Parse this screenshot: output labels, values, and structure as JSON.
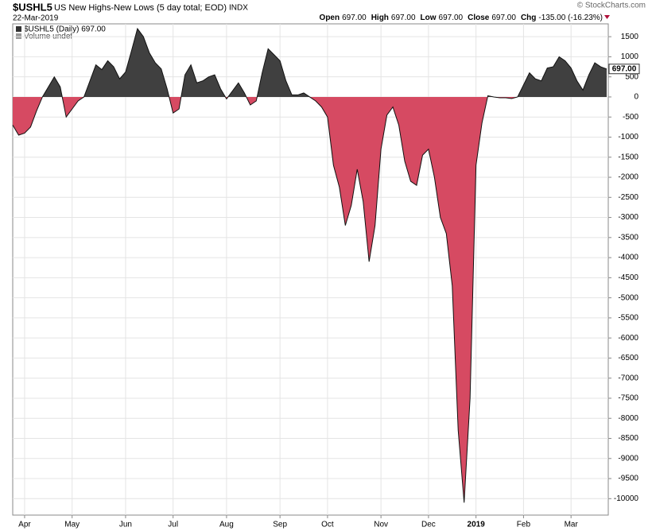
{
  "chart_data": {
    "type": "area",
    "symbol": "$USHL5",
    "title": "US New Highs-New Lows (5 day total; EOD)",
    "exchange": "INDX",
    "date": "22-Mar-2019",
    "credit": "© StockCharts.com",
    "quote": [
      {
        "label": "Open",
        "value": "697.00"
      },
      {
        "label": "High",
        "value": "697.00"
      },
      {
        "label": "Low",
        "value": "697.00"
      },
      {
        "label": "Close",
        "value": "697.00"
      },
      {
        "label": "Chg",
        "value": "-135.00 (-16.23%)"
      }
    ],
    "legend": [
      "$USHL5 (Daily) 697.00",
      "Volume undef"
    ],
    "positive_color": "#404040",
    "negative_color": "#d64a62",
    "line_color": "#111111",
    "grid": true,
    "categories": [
      null,
      null,
      "Apr",
      null,
      null,
      null,
      null,
      null,
      null,
      null,
      "May",
      null,
      null,
      null,
      null,
      null,
      null,
      null,
      null,
      "Jun",
      null,
      null,
      null,
      null,
      null,
      null,
      null,
      "Jul",
      null,
      null,
      null,
      null,
      null,
      null,
      null,
      null,
      "Aug",
      null,
      null,
      null,
      null,
      null,
      null,
      null,
      null,
      "Sep",
      null,
      null,
      null,
      null,
      null,
      null,
      null,
      "Oct",
      null,
      null,
      null,
      null,
      null,
      null,
      null,
      null,
      "Nov",
      null,
      null,
      null,
      null,
      null,
      null,
      null,
      "Dec",
      null,
      null,
      null,
      null,
      null,
      null,
      null,
      "2019",
      null,
      null,
      null,
      null,
      null,
      null,
      null,
      "Feb",
      null,
      null,
      null,
      null,
      null,
      null,
      null,
      "Mar",
      null,
      null,
      null,
      null,
      null,
      null
    ],
    "values": [
      -700,
      -950,
      -900,
      -750,
      -350,
      0,
      250,
      500,
      250,
      -500,
      -300,
      -100,
      0,
      400,
      800,
      680,
      900,
      750,
      450,
      620,
      1150,
      1700,
      1500,
      1100,
      850,
      700,
      200,
      -400,
      -300,
      550,
      800,
      350,
      400,
      500,
      550,
      200,
      -50,
      150,
      350,
      100,
      -200,
      -100,
      600,
      1200,
      1050,
      900,
      400,
      50,
      50,
      100,
      0,
      -100,
      -250,
      -500,
      -1700,
      -2250,
      -3200,
      -2700,
      -1800,
      -2600,
      -4100,
      -3200,
      -1300,
      -450,
      -250,
      -700,
      -1600,
      -2100,
      -2200,
      -1450,
      -1300,
      -2000,
      -3000,
      -3400,
      -4700,
      -8300,
      -10100,
      -7500,
      -1700,
      -650,
      30,
      0,
      -20,
      -20,
      -40,
      0,
      300,
      600,
      450,
      400,
      720,
      750,
      1000,
      900,
      720,
      400,
      170,
      550,
      850,
      750,
      697
    ],
    "last_value_label": "697.00",
    "ylim": [
      -10350,
      1780
    ],
    "yticks": [
      -10000,
      -9500,
      -9000,
      -8500,
      -8000,
      -7500,
      -7000,
      -6500,
      -6000,
      -5500,
      -5000,
      -4500,
      -4000,
      -3500,
      -3000,
      -2500,
      -2000,
      -1500,
      -1000,
      -500,
      0,
      500,
      1000,
      1500
    ]
  }
}
